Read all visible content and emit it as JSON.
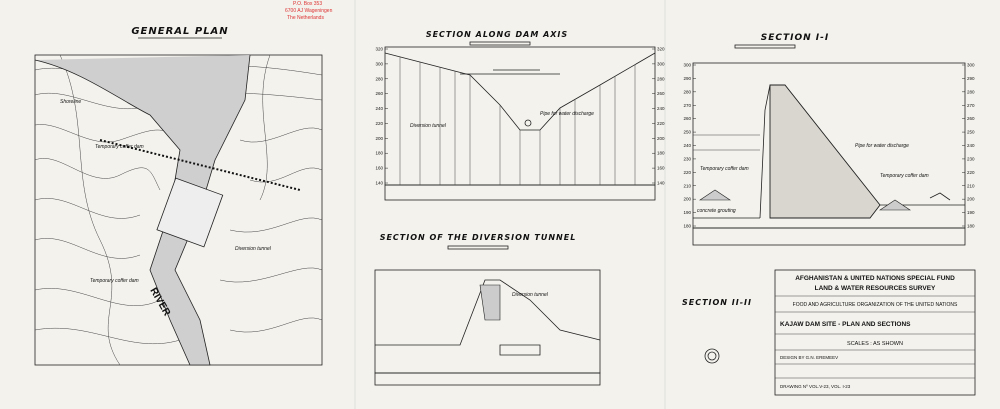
{
  "stamp": [
    "P.O. Box 353",
    "6700 AJ Wageningen",
    "The Netherlands"
  ],
  "general_plan": {
    "title": "GENERAL PLAN",
    "labels": [
      "Shoreline",
      "Temporary coffer dam",
      "Diversion tunnel",
      "Temporary coffer dam",
      "RIVER"
    ]
  },
  "dam_axis": {
    "title": "SECTION ALONG DAM AXIS",
    "labels": [
      "Pipe for water discharge",
      "Diversion tunnel"
    ],
    "elevations": [
      320,
      300,
      280,
      260,
      240,
      220,
      200,
      180,
      160,
      140
    ]
  },
  "section_1": {
    "title": "SECTION I-I",
    "labels": [
      "Pipe for water discharge",
      "Temporary coffer dam",
      "Temporary coffer dam",
      "concrete grouting"
    ],
    "elevations": [
      300,
      290,
      280,
      270,
      260,
      250,
      240,
      230,
      220,
      210,
      200,
      190,
      180
    ]
  },
  "tunnel": {
    "title": "SECTION OF THE DIVERSION TUNNEL",
    "labels": [
      "Diversion tunnel"
    ]
  },
  "section_2": {
    "title": "SECTION II-II"
  },
  "title_block": {
    "org": "AFGHANISTAN & UNITED NATIONS SPECIAL FUND",
    "survey": "LAND & WATER RESOURCES SURVEY",
    "fao": "FOOD AND AGRICULTURE ORGANIZATION OF THE UNITED NATIONS",
    "drawing_title": "KAJAW DAM SITE - PLAN AND SECTIONS",
    "scales": "SCALES : AS SHOWN",
    "design": "DESIGN BY G.N. EREMEEV",
    "drawing_no": "DRAWING Nº VOL.V-23, VOL. I-23"
  }
}
